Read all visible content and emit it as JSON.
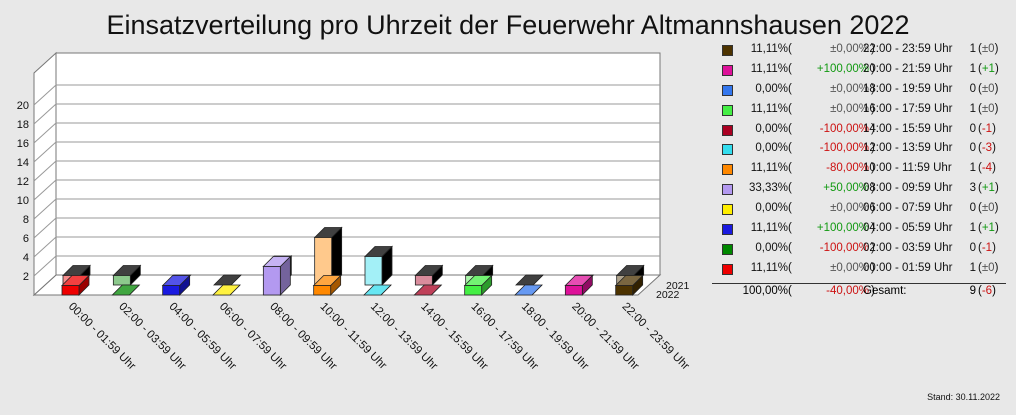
{
  "title": "Einsatzverteilung pro Uhrzeit der Feuerwehr Altmannshausen 2022",
  "stand": "Stand: 30.11.2022",
  "chart_data": {
    "type": "bar",
    "title": "Einsatzverteilung pro Uhrzeit der Feuerwehr Altmannshausen 2022",
    "categories": [
      "00:00 - 01:59 Uhr",
      "02:00 - 03:59 Uhr",
      "04:00 - 05:59 Uhr",
      "06:00 - 07:59 Uhr",
      "08:00 - 09:59 Uhr",
      "10:00 - 11:59 Uhr",
      "12:00 - 13:59 Uhr",
      "14:00 - 15:59 Uhr",
      "16:00 - 17:59 Uhr",
      "18:00 - 19:59 Uhr",
      "20:00 - 21:59 Uhr",
      "22:00 - 23:59 Uhr"
    ],
    "series": [
      {
        "name": "2022",
        "values": [
          1,
          0,
          1,
          0,
          3,
          1,
          0,
          0,
          1,
          0,
          1,
          1
        ]
      },
      {
        "name": "2021",
        "values": [
          1,
          1,
          0,
          0,
          2,
          5,
          3,
          1,
          1,
          0,
          0,
          1
        ]
      }
    ],
    "colors": [
      "#ee0000",
      "#008800",
      "#1a1ae0",
      "#ffee00",
      "#b399f0",
      "#ff8800",
      "#33ddee",
      "#aa0022",
      "#44ee44",
      "#3377ee",
      "#dd1199",
      "#4d3300"
    ],
    "yticks": [
      2,
      4,
      6,
      8,
      10,
      12,
      14,
      16,
      18,
      20
    ],
    "ylim": [
      0,
      22
    ],
    "grid": true
  },
  "legend": {
    "rows": [
      {
        "pct": "11,11%",
        "change": "±0,00%",
        "dir": "zero",
        "range": "22:00 - 23:59 Uhr",
        "count": "1",
        "delta": "±0",
        "color": "#4d3300"
      },
      {
        "pct": "11,11%",
        "change": "+100,00%",
        "dir": "pos",
        "range": "20:00 - 21:59 Uhr",
        "count": "1",
        "delta": "+1",
        "color": "#dd1199"
      },
      {
        "pct": "0,00%",
        "change": "±0,00%",
        "dir": "zero",
        "range": "18:00 - 19:59 Uhr",
        "count": "0",
        "delta": "±0",
        "color": "#3377ee"
      },
      {
        "pct": "11,11%",
        "change": "±0,00%",
        "dir": "zero",
        "range": "16:00 - 17:59 Uhr",
        "count": "1",
        "delta": "±0",
        "color": "#44ee44"
      },
      {
        "pct": "0,00%",
        "change": "-100,00%",
        "dir": "neg",
        "range": "14:00 - 15:59 Uhr",
        "count": "0",
        "delta": "-1",
        "color": "#aa0022"
      },
      {
        "pct": "0,00%",
        "change": "-100,00%",
        "dir": "neg",
        "range": "12:00 - 13:59 Uhr",
        "count": "0",
        "delta": "-3",
        "color": "#33ddee"
      },
      {
        "pct": "11,11%",
        "change": "-80,00%",
        "dir": "neg",
        "range": "10:00 - 11:59 Uhr",
        "count": "1",
        "delta": "-4",
        "color": "#ff8800"
      },
      {
        "pct": "33,33%",
        "change": "+50,00%",
        "dir": "pos",
        "range": "08:00 - 09:59 Uhr",
        "count": "3",
        "delta": "+1",
        "color": "#b399f0"
      },
      {
        "pct": "0,00%",
        "change": "±0,00%",
        "dir": "zero",
        "range": "06:00 - 07:59 Uhr",
        "count": "0",
        "delta": "±0",
        "color": "#ffee00"
      },
      {
        "pct": "11,11%",
        "change": "+100,00%",
        "dir": "pos",
        "range": "04:00 - 05:59 Uhr",
        "count": "1",
        "delta": "+1",
        "color": "#1a1ae0"
      },
      {
        "pct": "0,00%",
        "change": "-100,00%",
        "dir": "neg",
        "range": "02:00 - 03:59 Uhr",
        "count": "0",
        "delta": "-1",
        "color": "#008800"
      },
      {
        "pct": "11,11%",
        "change": "±0,00%",
        "dir": "zero",
        "range": "00:00 - 01:59 Uhr",
        "count": "1",
        "delta": "±0",
        "color": "#ee0000"
      }
    ],
    "total": {
      "pct": "100,00%",
      "change": "-40,00%",
      "dir": "neg",
      "label": "Gesamt:",
      "count": "9",
      "delta": "-6"
    }
  }
}
